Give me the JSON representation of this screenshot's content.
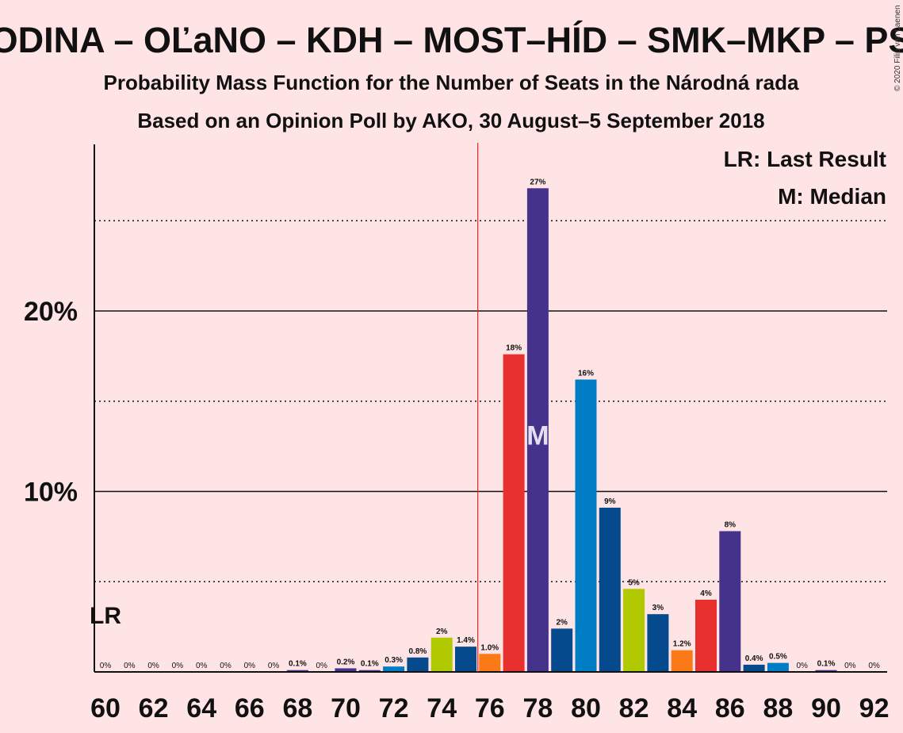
{
  "title": "ODINA – OĽaNO – KDH – MOST–HÍD – SMK–MKP – PS",
  "subtitle1": "Probability Mass Function for the Number of Seats in the Národná rada",
  "subtitle2": "Based on an Opinion Poll by AKO, 30 August–5 September 2018",
  "legend": {
    "lr": "LR: Last Result",
    "median": "M: Median"
  },
  "copyright": "© 2020 Filip van Laenen",
  "chart_data": {
    "type": "bar",
    "x_range": [
      60,
      92
    ],
    "ylim": [
      0,
      29
    ],
    "y_ticks": [
      {
        "value": 10,
        "label": "10%"
      },
      {
        "value": 20,
        "label": "20%"
      }
    ],
    "y_dotted": [
      5,
      15,
      25
    ],
    "x_ticks": [
      60,
      62,
      64,
      66,
      68,
      70,
      72,
      74,
      76,
      78,
      80,
      82,
      84,
      86,
      88,
      90,
      92
    ],
    "last_result": {
      "seats": 60,
      "label": "LR"
    },
    "majority_line": 75.5,
    "median": {
      "seats": 78,
      "label": "M"
    },
    "colors": {
      "purple": "#45328a",
      "red": "#e8302f",
      "blue": "#007dc5",
      "navy": "#044a8c",
      "green": "#b1c900",
      "orange": "#f97a16",
      "majority": "#e22",
      "grid": "#111"
    },
    "bars": [
      {
        "seats": 60,
        "value": 0,
        "label": "0%",
        "color": "purple"
      },
      {
        "seats": 61,
        "value": 0,
        "label": "0%",
        "color": "purple"
      },
      {
        "seats": 62,
        "value": 0,
        "label": "0%",
        "color": "purple"
      },
      {
        "seats": 63,
        "value": 0,
        "label": "0%",
        "color": "purple"
      },
      {
        "seats": 64,
        "value": 0,
        "label": "0%",
        "color": "purple"
      },
      {
        "seats": 65,
        "value": 0,
        "label": "0%",
        "color": "purple"
      },
      {
        "seats": 66,
        "value": 0,
        "label": "0%",
        "color": "purple"
      },
      {
        "seats": 67,
        "value": 0,
        "label": "0%",
        "color": "purple"
      },
      {
        "seats": 68,
        "value": 0.1,
        "label": "0.1%",
        "color": "purple"
      },
      {
        "seats": 69,
        "value": 0,
        "label": "0%",
        "color": "purple"
      },
      {
        "seats": 70,
        "value": 0.2,
        "label": "0.2%",
        "color": "purple"
      },
      {
        "seats": 71,
        "value": 0.1,
        "label": "0.1%",
        "color": "purple"
      },
      {
        "seats": 72,
        "value": 0.3,
        "label": "0.3%",
        "color": "blue"
      },
      {
        "seats": 73,
        "value": 0.8,
        "label": "0.8%",
        "color": "navy"
      },
      {
        "seats": 74,
        "value": 1.9,
        "label": "2%",
        "color": "green"
      },
      {
        "seats": 75,
        "value": 1.4,
        "label": "1.4%",
        "color": "navy"
      },
      {
        "seats": 76,
        "value": 1.0,
        "label": "1.0%",
        "color": "orange"
      },
      {
        "seats": 77,
        "value": 17.6,
        "label": "18%",
        "color": "red"
      },
      {
        "seats": 78,
        "value": 26.8,
        "label": "27%",
        "color": "purple"
      },
      {
        "seats": 79,
        "value": 2.4,
        "label": "2%",
        "color": "navy"
      },
      {
        "seats": 80,
        "value": 16.2,
        "label": "16%",
        "color": "blue"
      },
      {
        "seats": 81,
        "value": 9.1,
        "label": "9%",
        "color": "navy"
      },
      {
        "seats": 82,
        "value": 4.6,
        "label": "5%",
        "color": "green"
      },
      {
        "seats": 83,
        "value": 3.2,
        "label": "3%",
        "color": "navy"
      },
      {
        "seats": 84,
        "value": 1.2,
        "label": "1.2%",
        "color": "orange"
      },
      {
        "seats": 85,
        "value": 4.0,
        "label": "4%",
        "color": "red"
      },
      {
        "seats": 86,
        "value": 7.8,
        "label": "8%",
        "color": "purple"
      },
      {
        "seats": 87,
        "value": 0.4,
        "label": "0.4%",
        "color": "navy"
      },
      {
        "seats": 88,
        "value": 0.5,
        "label": "0.5%",
        "color": "blue"
      },
      {
        "seats": 89,
        "value": 0,
        "label": "0%",
        "color": "purple"
      },
      {
        "seats": 90,
        "value": 0.1,
        "label": "0.1%",
        "color": "purple"
      },
      {
        "seats": 91,
        "value": 0,
        "label": "0%",
        "color": "purple"
      },
      {
        "seats": 92,
        "value": 0,
        "label": "0%",
        "color": "purple"
      }
    ]
  }
}
